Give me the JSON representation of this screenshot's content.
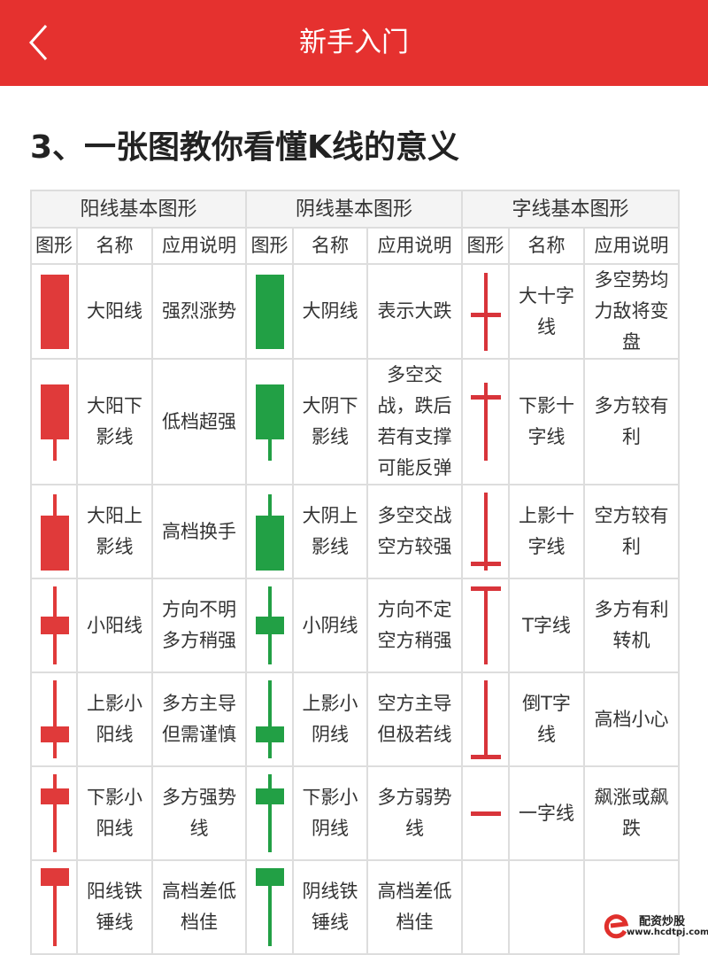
{
  "header": {
    "title": "新手入门",
    "back_icon": "chevron-left-icon",
    "bg_color": "#e5312f"
  },
  "heading": "3、一张图教你看懂K线的意义",
  "colors": {
    "yang": "#e03a3a",
    "yin": "#22a045",
    "cross": "#d8343a"
  },
  "table": {
    "groups": [
      "阳线基本图形",
      "阴线基本图形",
      "字线基本图形"
    ],
    "columns": [
      "图形",
      "名称",
      "应用说明"
    ],
    "rows": [
      [
        {
          "shape": "big-body",
          "name": "大阳线",
          "desc": "强烈涨势"
        },
        {
          "shape": "big-body",
          "name": "大阴线",
          "desc": "表示大跌"
        },
        {
          "shape": "cross-mid",
          "name": "大十字线",
          "desc": "多空势均力敌将变盘"
        }
      ],
      [
        {
          "shape": "body-lower-shadow",
          "name": "大阳下影线",
          "desc": "低档超强"
        },
        {
          "shape": "body-lower-shadow",
          "name": "大阴下影线",
          "desc": "多空交战，跌后若有支撑可能反弹"
        },
        {
          "shape": "cross-high",
          "name": "下影十字线",
          "desc": "多方较有利"
        }
      ],
      [
        {
          "shape": "body-upper-shadow",
          "name": "大阳上影线",
          "desc": "高档换手"
        },
        {
          "shape": "body-upper-shadow",
          "name": "大阴上影线",
          "desc": "多空交战空方较强"
        },
        {
          "shape": "cross-low",
          "name": "上影十字线",
          "desc": "空方较有利"
        }
      ],
      [
        {
          "shape": "small-mid",
          "name": "小阳线",
          "desc": "方向不明多方稍强"
        },
        {
          "shape": "small-mid",
          "name": "小阴线",
          "desc": "方向不定空方稍强"
        },
        {
          "shape": "t-line",
          "name": "T字线",
          "desc": "多方有利转机"
        }
      ],
      [
        {
          "shape": "small-low",
          "name": "上影小阳线",
          "desc": "多方主导但需谨慎"
        },
        {
          "shape": "small-low",
          "name": "上影小阴线",
          "desc": "空方主导但极若线"
        },
        {
          "shape": "inverted-t",
          "name": "倒T字线",
          "desc": "高档小心"
        }
      ],
      [
        {
          "shape": "small-high",
          "name": "下影小阳线",
          "desc": "多方强势线"
        },
        {
          "shape": "small-high",
          "name": "下影小阴线",
          "desc": "多方弱势线"
        },
        {
          "shape": "flat-line",
          "name": "一字线",
          "desc": "飙涨或飙跌"
        }
      ],
      [
        {
          "shape": "hammer",
          "name": "阳线铁锤线",
          "desc": "高档差低档佳"
        },
        {
          "shape": "hammer",
          "name": "阴线铁锤线",
          "desc": "高档差低档佳"
        },
        {
          "shape": "",
          "name": "",
          "desc": ""
        }
      ]
    ]
  },
  "watermark": {
    "name": "配资炒股",
    "url": "www.hcdtpj.com"
  }
}
